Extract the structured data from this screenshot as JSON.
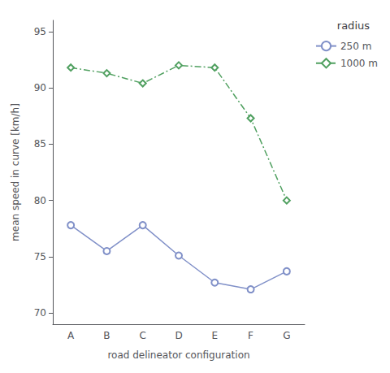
{
  "chart_data": {
    "type": "line",
    "categories": [
      "A",
      "B",
      "C",
      "D",
      "E",
      "F",
      "G"
    ],
    "series": [
      {
        "name": "250 m",
        "color": "#8090C8",
        "marker": "circle",
        "line_style": "solid",
        "values": [
          77.8,
          75.5,
          77.8,
          75.1,
          72.7,
          72.1,
          73.7
        ]
      },
      {
        "name": "1000 m",
        "color": "#50A060",
        "marker": "diamond",
        "line_style": "dashdot",
        "values": [
          91.8,
          91.3,
          90.4,
          92.0,
          91.8,
          87.3,
          80.0
        ]
      }
    ],
    "xlabel": "road delineator configuration",
    "ylabel": "mean speed in curve [km/h]",
    "legend_title": "radius",
    "legend": "right",
    "ylim": [
      69,
      96
    ],
    "yticks": [
      70,
      75,
      80,
      85,
      90,
      95
    ],
    "grid": false
  }
}
